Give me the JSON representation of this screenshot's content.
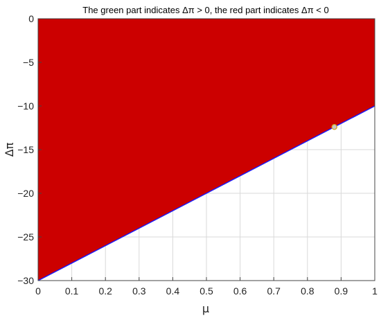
{
  "chart_data": {
    "type": "area",
    "title": "The green part indicates Δπ > 0,   the red part indicates Δπ < 0",
    "xlabel": "μ",
    "ylabel": "Δπ",
    "xlim": [
      0,
      1
    ],
    "ylim": [
      -30,
      0
    ],
    "x_ticks": [
      0,
      0.1,
      0.2,
      0.3,
      0.4,
      0.5,
      0.6,
      0.7,
      0.8,
      0.9,
      1
    ],
    "x_tick_labels": [
      "0",
      "0.1",
      "0.2",
      "0.3",
      "0.4",
      "0.5",
      "0.6",
      "0.7",
      "0.8",
      "0.9",
      "1"
    ],
    "y_ticks": [
      0,
      -5,
      -10,
      -15,
      -20,
      -25,
      -30
    ],
    "y_tick_labels": [
      "0",
      "−5",
      "−10",
      "−15",
      "−20",
      "−25",
      "−30"
    ],
    "grid": true,
    "boundary_line": {
      "x": [
        0,
        1
      ],
      "y": [
        -30,
        -10
      ]
    },
    "regions": [
      {
        "label": "red",
        "side": "above",
        "color": "#cc0000"
      }
    ],
    "marker": {
      "x": 0.88,
      "y": -12.4
    },
    "colors": {
      "red_region": "#cc0000",
      "boundary_line": "#1a1aff",
      "grid": "#d9d9d9",
      "axes": "#444444",
      "marker_fill": "#c8c8c8",
      "marker_stroke": "#d4a020"
    }
  }
}
